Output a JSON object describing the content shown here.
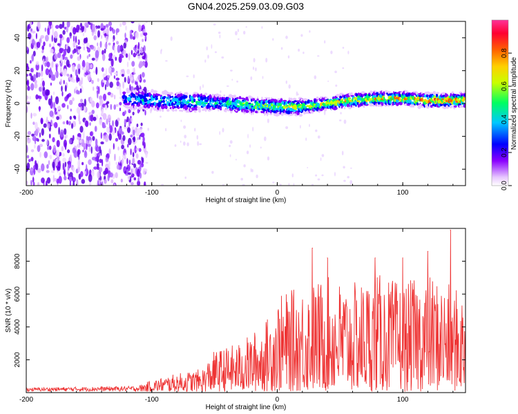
{
  "colors": {
    "line": "#ee3333",
    "colormap": [
      "#ffffff",
      "#e0a0ff",
      "#7a00ff",
      "#0000ff",
      "#00d0ff",
      "#00ff60",
      "#ffff00",
      "#ff8000",
      "#ff0040",
      "#ff33aa"
    ]
  },
  "chart_data": [
    {
      "type": "heatmap",
      "title": "GN04.2025.259.03.09.G03",
      "xlabel": "Height of straight line (km)",
      "ylabel": "Frequency (Hz)",
      "xlim": [
        -200,
        150
      ],
      "ylim": [
        -50,
        50
      ],
      "xticks": [
        -200,
        -100,
        0,
        100
      ],
      "yticks": [
        -40,
        -20,
        0,
        20,
        40
      ],
      "xtick_labels": [
        "-200",
        "-100",
        "0",
        "100"
      ],
      "ytick_labels": [
        "-40",
        "-20",
        "0",
        "20",
        "40"
      ],
      "colorbar": {
        "label": "Normalized spectral amplitude",
        "range": [
          0,
          1
        ],
        "ticks": [
          "0.0",
          "0.2",
          "0.4",
          "0.6",
          "0.8"
        ]
      },
      "ridge": {
        "heights": [
          -120,
          -100,
          -80,
          -60,
          -40,
          -20,
          0,
          20,
          40,
          60,
          80,
          100,
          120,
          150
        ],
        "frequency_hz": [
          3,
          2,
          1,
          1,
          0,
          -1,
          -2,
          -2,
          0,
          2,
          3,
          3,
          2,
          2
        ]
      },
      "noise_region_xlim": [
        -200,
        -110
      ]
    },
    {
      "type": "line",
      "xlabel": "Height of straight line (km)",
      "ylabel": "SNR (10 * v/v)",
      "xlim": [
        -200,
        150
      ],
      "ylim": [
        0,
        10000
      ],
      "xticks": [
        -200,
        -100,
        0,
        100
      ],
      "yticks": [
        2000,
        4000,
        6000,
        8000
      ],
      "xtick_labels": [
        "-200",
        "-100",
        "0",
        "100"
      ],
      "ytick_labels": [
        "2000",
        "4000",
        "6000",
        "8000"
      ],
      "envelope": {
        "x": [
          -200,
          -110,
          -100,
          -80,
          -60,
          -50,
          -30,
          -10,
          0,
          20,
          40,
          60,
          80,
          100,
          120,
          150
        ],
        "y": [
          300,
          400,
          700,
          1100,
          1400,
          2500,
          3000,
          4200,
          5800,
          6500,
          7000,
          6600,
          7200,
          6600,
          7200,
          6000
        ]
      },
      "peaks": [
        {
          "x": 28,
          "y": 8800
        },
        {
          "x": 40,
          "y": 8200
        },
        {
          "x": 78,
          "y": 8200
        },
        {
          "x": 100,
          "y": 8200
        },
        {
          "x": 120,
          "y": 8600
        },
        {
          "x": 138,
          "y": 9900
        }
      ]
    }
  ]
}
